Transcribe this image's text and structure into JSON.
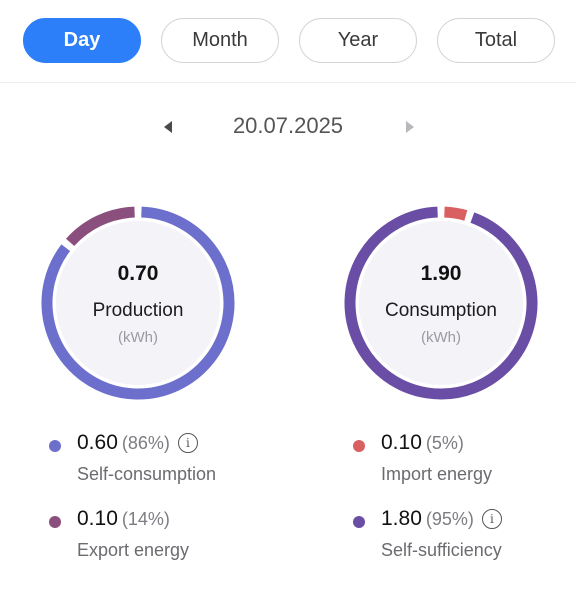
{
  "tabs": [
    {
      "label": "Day",
      "active": true
    },
    {
      "label": "Month",
      "active": false
    },
    {
      "label": "Year",
      "active": false
    },
    {
      "label": "Total",
      "active": false
    }
  ],
  "date": "20.07.2025",
  "colors": {
    "accent": "#2d7ff9",
    "self_consumption": "#6c6fcb",
    "export": "#8a4f7d",
    "import": "#d96060",
    "self_sufficiency": "#6a4ea5",
    "donut_inner": "#f3f3f8"
  },
  "production": {
    "value": "0.70",
    "label": "Production",
    "unit": "(kWh)",
    "segments": [
      {
        "name": "Self-consumption",
        "fraction": 0.86,
        "color": "#6c6fcb"
      },
      {
        "name": "Export energy",
        "fraction": 0.14,
        "color": "#8a4f7d"
      }
    ],
    "legend": [
      {
        "value": "0.60",
        "pct": "(86%)",
        "label": "Self-consumption",
        "info": true,
        "color": "#6c6fcb"
      },
      {
        "value": "0.10",
        "pct": "(14%)",
        "label": "Export energy",
        "info": false,
        "color": "#8a4f7d"
      }
    ]
  },
  "consumption": {
    "value": "1.90",
    "label": "Consumption",
    "unit": "(kWh)",
    "segments": [
      {
        "name": "Import energy",
        "fraction": 0.05,
        "color": "#d96060"
      },
      {
        "name": "Self-sufficiency",
        "fraction": 0.95,
        "color": "#6a4ea5"
      }
    ],
    "legend": [
      {
        "value": "0.10",
        "pct": "(5%)",
        "label": "Import energy",
        "info": false,
        "color": "#d96060"
      },
      {
        "value": "1.80",
        "pct": "(95%)",
        "label": "Self-sufficiency",
        "info": true,
        "color": "#6a4ea5"
      }
    ]
  }
}
